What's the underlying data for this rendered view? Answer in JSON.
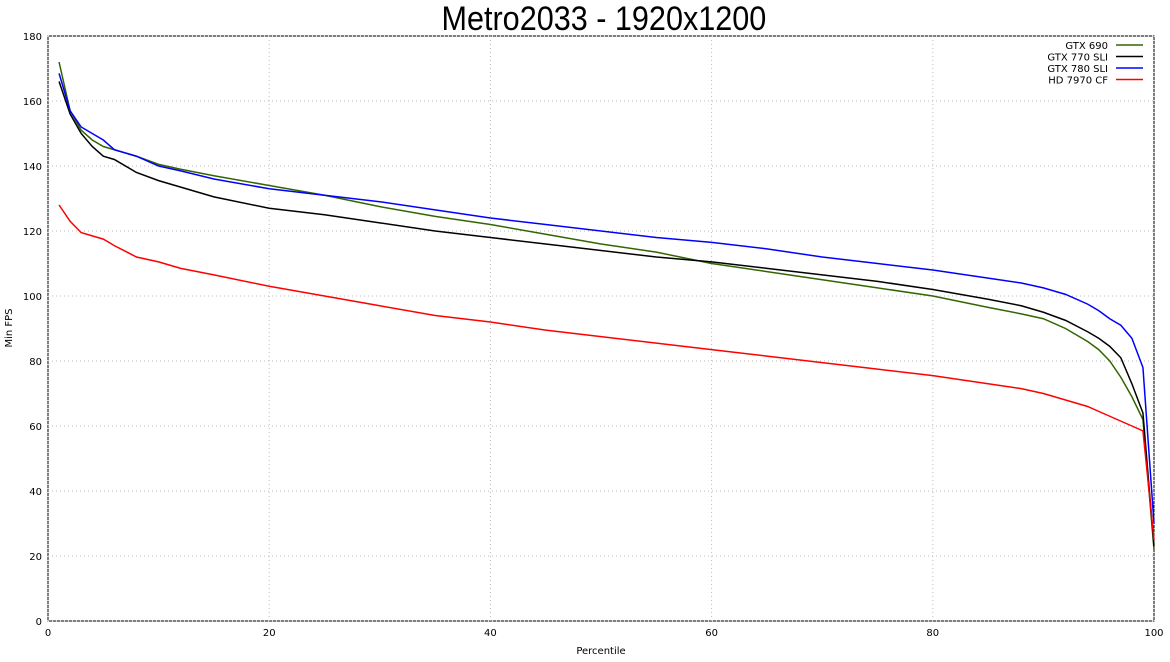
{
  "chart_data": {
    "type": "line",
    "title": "Metro2033 - 1920x1200",
    "x_label": "Percentile",
    "y_label": "Min FPS",
    "x": [
      1,
      2,
      3,
      4,
      5,
      6,
      8,
      10,
      12,
      15,
      20,
      25,
      30,
      35,
      40,
      45,
      50,
      55,
      60,
      65,
      70,
      75,
      80,
      85,
      88,
      90,
      92,
      94,
      95,
      96,
      97,
      98,
      99,
      100
    ],
    "series": [
      {
        "name": "GTX 690",
        "color": "#336600",
        "values": [
          172,
          157,
          151,
          148,
          146,
          145,
          143,
          140.5,
          139,
          137,
          134,
          131,
          127.5,
          124.5,
          122,
          119,
          116,
          113.5,
          110,
          107.5,
          105,
          102.5,
          100,
          96.5,
          94.5,
          93,
          90,
          86,
          83.5,
          80,
          75,
          69,
          62,
          22
        ]
      },
      {
        "name": "GTX 770 SLI",
        "color": "#000000",
        "values": [
          166,
          156,
          150,
          146,
          143,
          142,
          138,
          135.5,
          133.5,
          130.5,
          127,
          125,
          122.5,
          120,
          118,
          116,
          114,
          112,
          110.5,
          108.5,
          106.5,
          104.5,
          102,
          99,
          97,
          95,
          92.5,
          89,
          87,
          84.5,
          81,
          73,
          64,
          23
        ]
      },
      {
        "name": "GTX 780 SLI",
        "color": "#0000ff",
        "values": [
          168.5,
          157,
          152,
          150,
          148,
          145,
          143,
          140,
          138.5,
          136,
          133,
          131,
          129,
          126.5,
          124,
          122,
          120,
          118,
          116.5,
          114.5,
          112,
          110,
          108,
          105.5,
          104,
          102.5,
          100.5,
          97.5,
          95.5,
          93,
          91,
          87,
          78,
          30
        ]
      },
      {
        "name": "HD 7970 CF",
        "color": "#ff0000",
        "values": [
          128,
          123,
          119.5,
          118.5,
          117.5,
          115.5,
          112,
          110.5,
          108.5,
          106.5,
          103,
          100,
          97,
          94,
          92,
          89.5,
          87.5,
          85.5,
          83.5,
          81.5,
          79.5,
          77.5,
          75.5,
          73,
          71.5,
          70,
          68,
          66,
          64.5,
          63,
          61.5,
          60,
          58.5,
          25
        ]
      }
    ],
    "xlim": [
      0,
      100
    ],
    "xticks": [
      0,
      20,
      40,
      60,
      80,
      100
    ],
    "ylim": [
      0,
      180
    ],
    "yticks": [
      0,
      20,
      40,
      60,
      80,
      100,
      120,
      140,
      160,
      180
    ],
    "grid": true,
    "legend": "top-right"
  }
}
